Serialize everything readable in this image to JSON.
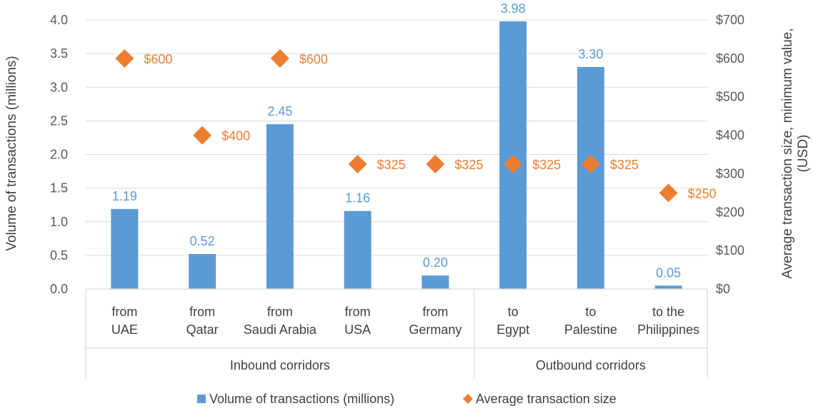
{
  "chart_data": {
    "type": "bar",
    "categories": [
      [
        "from",
        "UAE"
      ],
      [
        "from",
        "Qatar"
      ],
      [
        "from",
        "Saudi Arabia"
      ],
      [
        "from",
        "USA"
      ],
      [
        "from",
        "Germany"
      ],
      [
        "to",
        "Egypt"
      ],
      [
        "to",
        "Palestine"
      ],
      [
        "to the",
        "Philippines"
      ]
    ],
    "groups": [
      {
        "label": "Inbound corridors",
        "count": 5
      },
      {
        "label": "Outbound corridors",
        "count": 3
      }
    ],
    "series": [
      {
        "name": "Volume of transactions (millions)",
        "type": "bar",
        "axis": "left",
        "color": "#5B9BD5",
        "values": [
          1.19,
          0.52,
          2.45,
          1.16,
          0.2,
          3.98,
          3.3,
          0.05
        ],
        "labels": [
          "1.19",
          "0.52",
          "2.45",
          "1.16",
          "0.20",
          "3.98",
          "3.30",
          "0.05"
        ]
      },
      {
        "name": "Average transaction size",
        "type": "scatter",
        "marker": "diamond",
        "axis": "right",
        "color": "#ED7D31",
        "values": [
          600,
          400,
          600,
          325,
          325,
          325,
          325,
          250
        ],
        "labels": [
          "$600",
          "$400",
          "$600",
          "$325",
          "$325",
          "$325",
          "$325",
          "$250"
        ]
      }
    ],
    "y_left": {
      "label": "Volume of transactions (millions)",
      "ylim": [
        0,
        4.0
      ],
      "ticks": [
        "0.0",
        "0.5",
        "1.0",
        "1.5",
        "2.0",
        "2.5",
        "3.0",
        "3.5",
        "4.0"
      ]
    },
    "y_right": {
      "label_lines": [
        "Average transaction size, minimum value,",
        "(USD)"
      ],
      "ylim": [
        0,
        700
      ],
      "ticks": [
        "$0",
        "$100",
        "$200",
        "$300",
        "$400",
        "$500",
        "$600",
        "$700"
      ]
    },
    "grid": true,
    "legend_position": "bottom"
  }
}
